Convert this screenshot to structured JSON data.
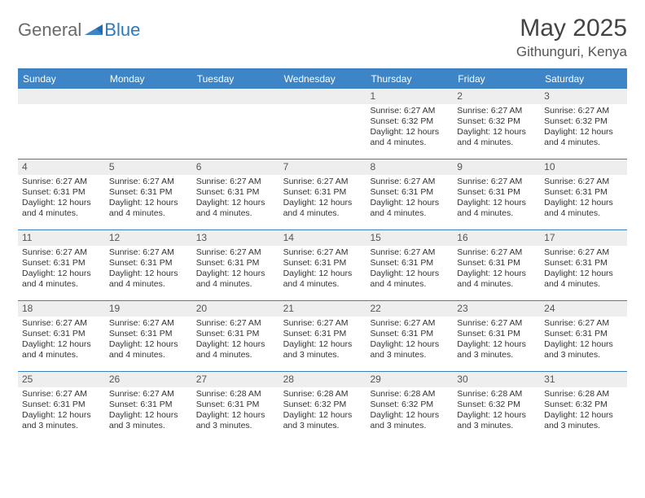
{
  "logo": {
    "part1": "General",
    "part2": "Blue"
  },
  "title": "May 2025",
  "location": "Githunguri, Kenya",
  "colors": {
    "header_bg": "#3d85c6",
    "header_text": "#ffffff",
    "rule": "#3b7fbf",
    "daynum_bg": "#eeeeee",
    "body_text": "#333333",
    "logo_gray": "#6a6a6a",
    "logo_blue": "#2a7ac0"
  },
  "typography": {
    "title_fontsize": 30,
    "location_fontsize": 17,
    "dayhead_fontsize": 12,
    "cell_fontsize": 10.5
  },
  "day_headers": [
    "Sunday",
    "Monday",
    "Tuesday",
    "Wednesday",
    "Thursday",
    "Friday",
    "Saturday"
  ],
  "weeks": [
    [
      {
        "empty": true
      },
      {
        "empty": true
      },
      {
        "empty": true
      },
      {
        "empty": true
      },
      {
        "num": "1",
        "sunrise": "Sunrise: 6:27 AM",
        "sunset": "Sunset: 6:32 PM",
        "daylight": "Daylight: 12 hours and 4 minutes."
      },
      {
        "num": "2",
        "sunrise": "Sunrise: 6:27 AM",
        "sunset": "Sunset: 6:32 PM",
        "daylight": "Daylight: 12 hours and 4 minutes."
      },
      {
        "num": "3",
        "sunrise": "Sunrise: 6:27 AM",
        "sunset": "Sunset: 6:32 PM",
        "daylight": "Daylight: 12 hours and 4 minutes."
      }
    ],
    [
      {
        "num": "4",
        "sunrise": "Sunrise: 6:27 AM",
        "sunset": "Sunset: 6:31 PM",
        "daylight": "Daylight: 12 hours and 4 minutes."
      },
      {
        "num": "5",
        "sunrise": "Sunrise: 6:27 AM",
        "sunset": "Sunset: 6:31 PM",
        "daylight": "Daylight: 12 hours and 4 minutes."
      },
      {
        "num": "6",
        "sunrise": "Sunrise: 6:27 AM",
        "sunset": "Sunset: 6:31 PM",
        "daylight": "Daylight: 12 hours and 4 minutes."
      },
      {
        "num": "7",
        "sunrise": "Sunrise: 6:27 AM",
        "sunset": "Sunset: 6:31 PM",
        "daylight": "Daylight: 12 hours and 4 minutes."
      },
      {
        "num": "8",
        "sunrise": "Sunrise: 6:27 AM",
        "sunset": "Sunset: 6:31 PM",
        "daylight": "Daylight: 12 hours and 4 minutes."
      },
      {
        "num": "9",
        "sunrise": "Sunrise: 6:27 AM",
        "sunset": "Sunset: 6:31 PM",
        "daylight": "Daylight: 12 hours and 4 minutes."
      },
      {
        "num": "10",
        "sunrise": "Sunrise: 6:27 AM",
        "sunset": "Sunset: 6:31 PM",
        "daylight": "Daylight: 12 hours and 4 minutes."
      }
    ],
    [
      {
        "num": "11",
        "sunrise": "Sunrise: 6:27 AM",
        "sunset": "Sunset: 6:31 PM",
        "daylight": "Daylight: 12 hours and 4 minutes."
      },
      {
        "num": "12",
        "sunrise": "Sunrise: 6:27 AM",
        "sunset": "Sunset: 6:31 PM",
        "daylight": "Daylight: 12 hours and 4 minutes."
      },
      {
        "num": "13",
        "sunrise": "Sunrise: 6:27 AM",
        "sunset": "Sunset: 6:31 PM",
        "daylight": "Daylight: 12 hours and 4 minutes."
      },
      {
        "num": "14",
        "sunrise": "Sunrise: 6:27 AM",
        "sunset": "Sunset: 6:31 PM",
        "daylight": "Daylight: 12 hours and 4 minutes."
      },
      {
        "num": "15",
        "sunrise": "Sunrise: 6:27 AM",
        "sunset": "Sunset: 6:31 PM",
        "daylight": "Daylight: 12 hours and 4 minutes."
      },
      {
        "num": "16",
        "sunrise": "Sunrise: 6:27 AM",
        "sunset": "Sunset: 6:31 PM",
        "daylight": "Daylight: 12 hours and 4 minutes."
      },
      {
        "num": "17",
        "sunrise": "Sunrise: 6:27 AM",
        "sunset": "Sunset: 6:31 PM",
        "daylight": "Daylight: 12 hours and 4 minutes."
      }
    ],
    [
      {
        "num": "18",
        "sunrise": "Sunrise: 6:27 AM",
        "sunset": "Sunset: 6:31 PM",
        "daylight": "Daylight: 12 hours and 4 minutes."
      },
      {
        "num": "19",
        "sunrise": "Sunrise: 6:27 AM",
        "sunset": "Sunset: 6:31 PM",
        "daylight": "Daylight: 12 hours and 4 minutes."
      },
      {
        "num": "20",
        "sunrise": "Sunrise: 6:27 AM",
        "sunset": "Sunset: 6:31 PM",
        "daylight": "Daylight: 12 hours and 4 minutes."
      },
      {
        "num": "21",
        "sunrise": "Sunrise: 6:27 AM",
        "sunset": "Sunset: 6:31 PM",
        "daylight": "Daylight: 12 hours and 3 minutes."
      },
      {
        "num": "22",
        "sunrise": "Sunrise: 6:27 AM",
        "sunset": "Sunset: 6:31 PM",
        "daylight": "Daylight: 12 hours and 3 minutes."
      },
      {
        "num": "23",
        "sunrise": "Sunrise: 6:27 AM",
        "sunset": "Sunset: 6:31 PM",
        "daylight": "Daylight: 12 hours and 3 minutes."
      },
      {
        "num": "24",
        "sunrise": "Sunrise: 6:27 AM",
        "sunset": "Sunset: 6:31 PM",
        "daylight": "Daylight: 12 hours and 3 minutes."
      }
    ],
    [
      {
        "num": "25",
        "sunrise": "Sunrise: 6:27 AM",
        "sunset": "Sunset: 6:31 PM",
        "daylight": "Daylight: 12 hours and 3 minutes."
      },
      {
        "num": "26",
        "sunrise": "Sunrise: 6:27 AM",
        "sunset": "Sunset: 6:31 PM",
        "daylight": "Daylight: 12 hours and 3 minutes."
      },
      {
        "num": "27",
        "sunrise": "Sunrise: 6:28 AM",
        "sunset": "Sunset: 6:31 PM",
        "daylight": "Daylight: 12 hours and 3 minutes."
      },
      {
        "num": "28",
        "sunrise": "Sunrise: 6:28 AM",
        "sunset": "Sunset: 6:32 PM",
        "daylight": "Daylight: 12 hours and 3 minutes."
      },
      {
        "num": "29",
        "sunrise": "Sunrise: 6:28 AM",
        "sunset": "Sunset: 6:32 PM",
        "daylight": "Daylight: 12 hours and 3 minutes."
      },
      {
        "num": "30",
        "sunrise": "Sunrise: 6:28 AM",
        "sunset": "Sunset: 6:32 PM",
        "daylight": "Daylight: 12 hours and 3 minutes."
      },
      {
        "num": "31",
        "sunrise": "Sunrise: 6:28 AM",
        "sunset": "Sunset: 6:32 PM",
        "daylight": "Daylight: 12 hours and 3 minutes."
      }
    ]
  ]
}
